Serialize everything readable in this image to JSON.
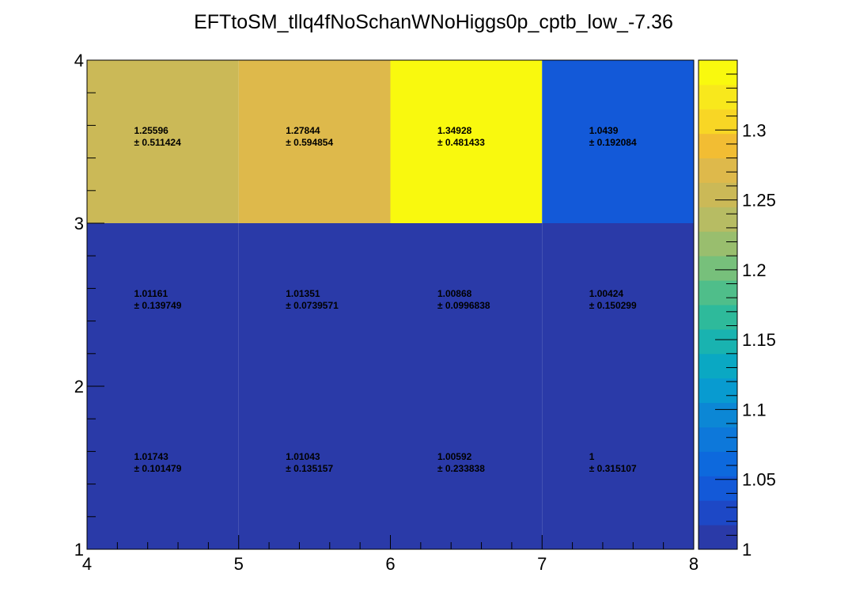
{
  "chart_data": {
    "type": "heatmap",
    "title": "EFTtoSM_tllq4fNoSchanWNoHiggs0p_cptb_low_-7.36",
    "xlabel": "",
    "ylabel": "",
    "x_edges": [
      4,
      5,
      6,
      7,
      8
    ],
    "y_edges": [
      1,
      2,
      3,
      4
    ],
    "x_tick_labels": [
      "4",
      "5",
      "6",
      "7",
      "8"
    ],
    "y_tick_labels": [
      "1",
      "2",
      "3",
      "4"
    ],
    "xlim": [
      4,
      8
    ],
    "ylim": [
      1,
      4
    ],
    "zlim": [
      1.0,
      1.35
    ],
    "colorbar_tick_labels": [
      "1",
      "1.05",
      "1.1",
      "1.15",
      "1.2",
      "1.25",
      "1.3"
    ],
    "colorbar_ticks": [
      1.0,
      1.05,
      1.1,
      1.15,
      1.2,
      1.25,
      1.3
    ],
    "cells": [
      {
        "x": [
          4,
          5
        ],
        "y": [
          1,
          2
        ],
        "value_label": "1.01743",
        "error_label": "± 0.101479",
        "value": 1.01743,
        "error": 0.101479
      },
      {
        "x": [
          5,
          6
        ],
        "y": [
          1,
          2
        ],
        "value_label": "1.01043",
        "error_label": "± 0.135157",
        "value": 1.01043,
        "error": 0.135157
      },
      {
        "x": [
          6,
          7
        ],
        "y": [
          1,
          2
        ],
        "value_label": "1.00592",
        "error_label": "± 0.233838",
        "value": 1.00592,
        "error": 0.233838
      },
      {
        "x": [
          7,
          8
        ],
        "y": [
          1,
          2
        ],
        "value_label": "1",
        "error_label": "± 0.315107",
        "value": 1.0,
        "error": 0.315107
      },
      {
        "x": [
          4,
          5
        ],
        "y": [
          2,
          3
        ],
        "value_label": "1.01161",
        "error_label": "± 0.139749",
        "value": 1.01161,
        "error": 0.139749
      },
      {
        "x": [
          5,
          6
        ],
        "y": [
          2,
          3
        ],
        "value_label": "1.01351",
        "error_label": "± 0.0739571",
        "value": 1.01351,
        "error": 0.0739571
      },
      {
        "x": [
          6,
          7
        ],
        "y": [
          2,
          3
        ],
        "value_label": "1.00868",
        "error_label": "± 0.0996838",
        "value": 1.00868,
        "error": 0.0996838
      },
      {
        "x": [
          7,
          8
        ],
        "y": [
          2,
          3
        ],
        "value_label": "1.00424",
        "error_label": "± 0.150299",
        "value": 1.00424,
        "error": 0.150299
      },
      {
        "x": [
          4,
          5
        ],
        "y": [
          3,
          4
        ],
        "value_label": "1.25596",
        "error_label": "± 0.511424",
        "value": 1.25596,
        "error": 0.511424
      },
      {
        "x": [
          5,
          6
        ],
        "y": [
          3,
          4
        ],
        "value_label": "1.27844",
        "error_label": "± 0.594854",
        "value": 1.27844,
        "error": 0.594854
      },
      {
        "x": [
          6,
          7
        ],
        "y": [
          3,
          4
        ],
        "value_label": "1.34928",
        "error_label": "± 0.481433",
        "value": 1.34928,
        "error": 0.481433
      },
      {
        "x": [
          7,
          8
        ],
        "y": [
          3,
          4
        ],
        "value_label": "1.0439",
        "error_label": "± 0.192084",
        "value": 1.0439,
        "error": 0.192084
      }
    ],
    "palette": [
      "#2a3aa8",
      "#1d48c6",
      "#1359d8",
      "#0d69dd",
      "#0d78da",
      "#0c87d5",
      "#089bd0",
      "#0aa8c3",
      "#19b3b0",
      "#2eba9b",
      "#4fbe8a",
      "#77c07b",
      "#99be6e",
      "#b7bc63",
      "#cbb957",
      "#deb94b",
      "#f2bd33",
      "#f8d625",
      "#f8e81c",
      "#f9f90e"
    ],
    "grid": false,
    "legend": "none"
  }
}
